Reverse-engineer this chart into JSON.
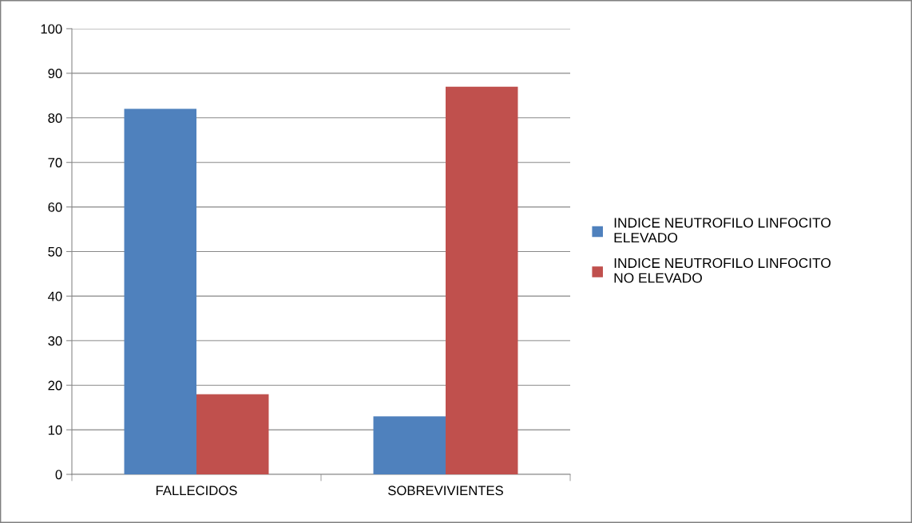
{
  "chart_data": {
    "type": "bar",
    "categories": [
      "FALLECIDOS",
      "SOBREVIVIENTES"
    ],
    "series": [
      {
        "name": "INDICE NEUTROFILO LINFOCITO ELEVADO",
        "color": "#4f81bd",
        "values": [
          82,
          13
        ]
      },
      {
        "name": "INDICE NEUTROFILO LINFOCITO NO ELEVADO",
        "color": "#c0504d",
        "values": [
          18,
          87
        ]
      }
    ],
    "ylim": [
      0,
      100
    ],
    "yticks": [
      0,
      10,
      20,
      30,
      40,
      50,
      60,
      70,
      80,
      90,
      100
    ],
    "grid": "y",
    "legend": "right"
  }
}
